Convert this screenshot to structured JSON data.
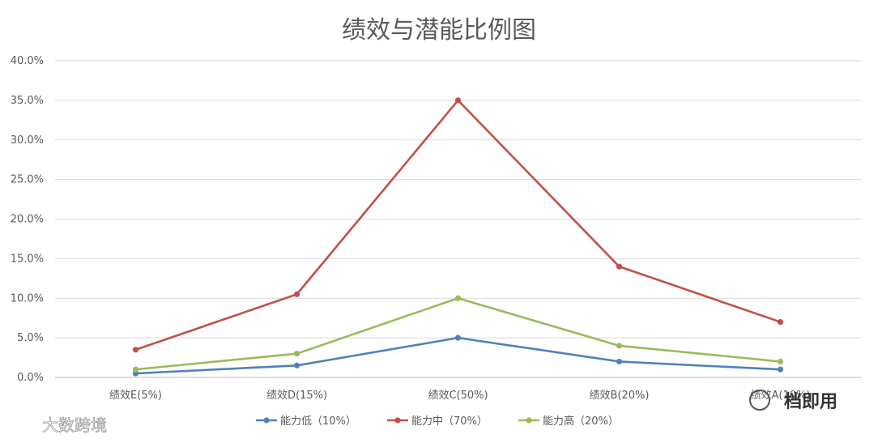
{
  "chart_data": {
    "type": "line",
    "title": "绩效与潜能比例图",
    "categories": [
      "绩效E(5%)",
      "绩效D(15%)",
      "绩效C(50%)",
      "绩效B(20%)",
      "绩效A(10%)"
    ],
    "y_ticks": [
      "0.0%",
      "5.0%",
      "10.0%",
      "15.0%",
      "20.0%",
      "25.0%",
      "30.0%",
      "35.0%",
      "40.0%"
    ],
    "ylim": [
      0,
      40
    ],
    "grid": true,
    "legend_position": "bottom",
    "series": [
      {
        "name": "能力低（10%）",
        "color": "#4f81bd",
        "values": [
          0.5,
          1.5,
          5.0,
          2.0,
          1.0
        ]
      },
      {
        "name": "能力中（70%）",
        "color": "#c0504d",
        "values": [
          3.5,
          10.5,
          35.0,
          14.0,
          7.0
        ]
      },
      {
        "name": "能力高（20%）",
        "color": "#9bbb59",
        "values": [
          1.0,
          3.0,
          10.0,
          4.0,
          2.0
        ]
      }
    ]
  },
  "watermarks": {
    "left": "大数跨境",
    "right": "档即用"
  }
}
